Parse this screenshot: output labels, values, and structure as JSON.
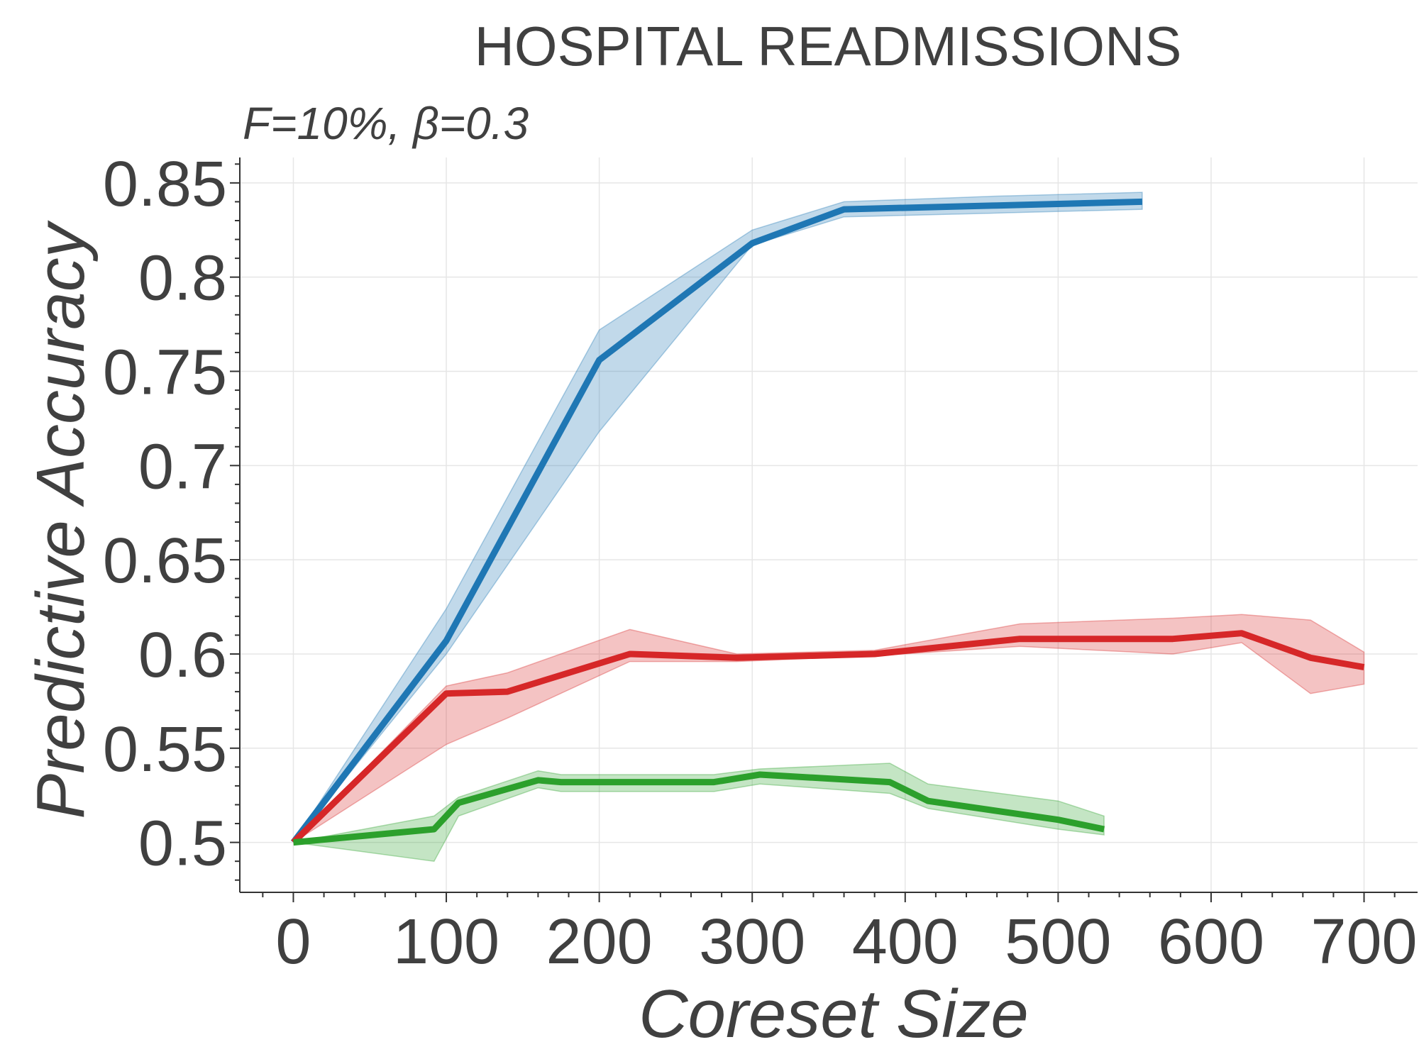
{
  "chart_data": {
    "type": "line",
    "title": "HOSPITAL READMISSIONS",
    "subtitle": "F=10%,  β=0.3",
    "xlabel": "Coreset Size",
    "ylabel": "Predictive Accuracy",
    "xlim": [
      -35,
      735
    ],
    "ylim": [
      0.4735,
      0.8635
    ],
    "xticks": [
      0,
      100,
      200,
      300,
      400,
      500,
      600,
      700
    ],
    "xtick_labels": [
      "0",
      "100",
      "200",
      "300",
      "400",
      "500",
      "600",
      "700"
    ],
    "yticks": [
      0.5,
      0.55,
      0.6,
      0.65,
      0.7,
      0.75,
      0.8,
      0.85
    ],
    "ytick_labels": [
      "0.5",
      "0.55",
      "0.6",
      "0.65",
      "0.7",
      "0.75",
      "0.8",
      "0.85"
    ],
    "grid": true,
    "series": [
      {
        "color": "#1f77b4",
        "fill_color": "#1f77b4",
        "x": [
          0,
          100,
          200,
          300,
          360,
          460,
          555
        ],
        "y": [
          0.5,
          0.607,
          0.756,
          0.818,
          0.836,
          0.838,
          0.84
        ],
        "lower": [
          0.5,
          0.6,
          0.718,
          0.817,
          0.832,
          0.834,
          0.836
        ],
        "upper": [
          0.5,
          0.624,
          0.772,
          0.825,
          0.84,
          0.843,
          0.845
        ]
      },
      {
        "color": "#d62728",
        "fill_color": "#d62728",
        "x": [
          0,
          100,
          140,
          220,
          290,
          380,
          475,
          575,
          620,
          665,
          700
        ],
        "y": [
          0.5,
          0.579,
          0.58,
          0.6,
          0.598,
          0.6,
          0.608,
          0.608,
          0.611,
          0.598,
          0.593
        ],
        "lower": [
          0.5,
          0.552,
          0.566,
          0.596,
          0.596,
          0.599,
          0.604,
          0.6,
          0.606,
          0.579,
          0.584
        ],
        "upper": [
          0.5,
          0.583,
          0.59,
          0.613,
          0.6,
          0.602,
          0.616,
          0.619,
          0.621,
          0.618,
          0.601
        ]
      },
      {
        "color": "#2ca02c",
        "fill_color": "#2ca02c",
        "x": [
          0,
          92,
          108,
          160,
          175,
          275,
          305,
          390,
          415,
          500,
          530
        ],
        "y": [
          0.5,
          0.507,
          0.521,
          0.533,
          0.532,
          0.532,
          0.536,
          0.532,
          0.522,
          0.512,
          0.507
        ],
        "lower": [
          0.5,
          0.49,
          0.514,
          0.529,
          0.527,
          0.527,
          0.531,
          0.526,
          0.518,
          0.507,
          0.504
        ],
        "upper": [
          0.5,
          0.514,
          0.524,
          0.538,
          0.536,
          0.536,
          0.539,
          0.542,
          0.531,
          0.522,
          0.514
        ]
      }
    ]
  }
}
